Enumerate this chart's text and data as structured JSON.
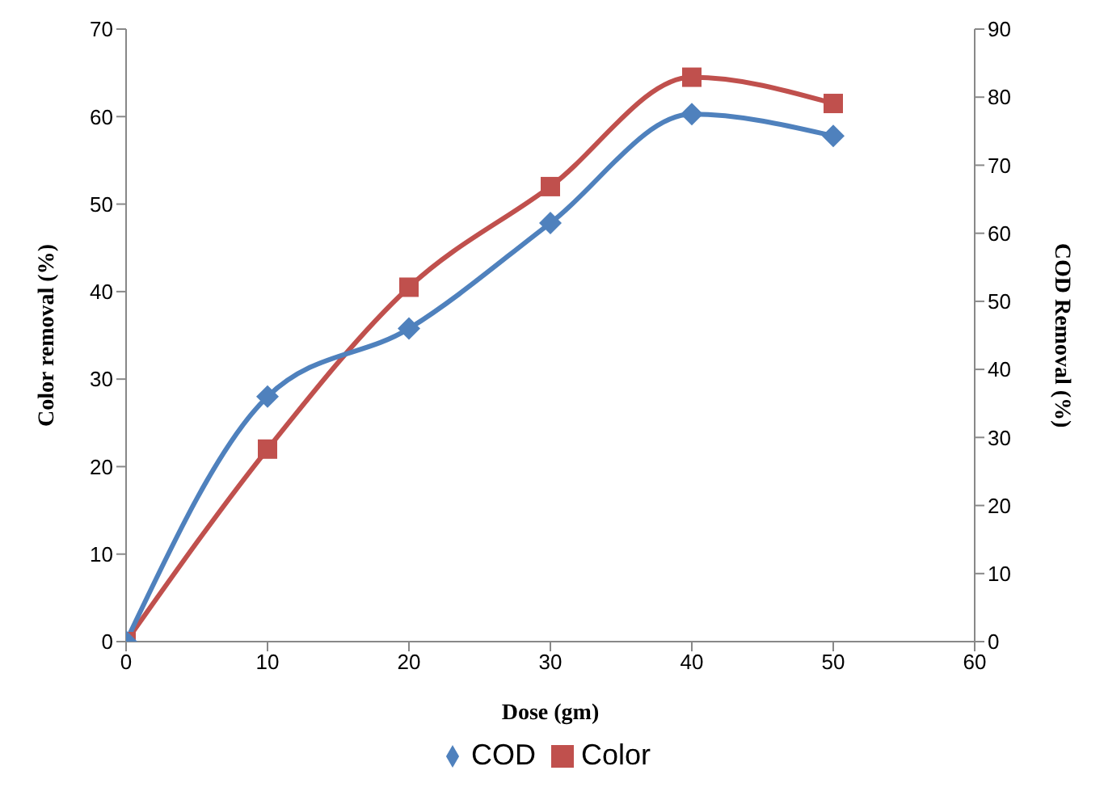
{
  "chart_data": {
    "type": "line",
    "xlabel": "Dose (gm)",
    "ylabel": "Color removal (%)",
    "y2label": "COD Removal (%)",
    "x": [
      0,
      10,
      20,
      30,
      40,
      50
    ],
    "series": [
      {
        "name": "Color",
        "color": "#c0504d",
        "marker": "square",
        "values": [
          0,
          22,
          40.5,
          52,
          64.5,
          61.5
        ]
      },
      {
        "name": "COD",
        "color": "#4f81bd",
        "marker": "diamond",
        "axis": "y2",
        "values": [
          0,
          36,
          46,
          61.5,
          77.5,
          74.3
        ]
      }
    ],
    "xlim": [
      0,
      60
    ],
    "xticks": [
      0,
      10,
      20,
      30,
      40,
      50,
      60
    ],
    "ylim": [
      0,
      70
    ],
    "yticks": [
      0,
      10,
      20,
      30,
      40,
      50,
      60,
      70
    ],
    "y2lim": [
      0,
      90
    ],
    "y2ticks": [
      0,
      10,
      20,
      30,
      40,
      50,
      60,
      70,
      80,
      90
    ],
    "grid": false,
    "legend": "bottom"
  }
}
